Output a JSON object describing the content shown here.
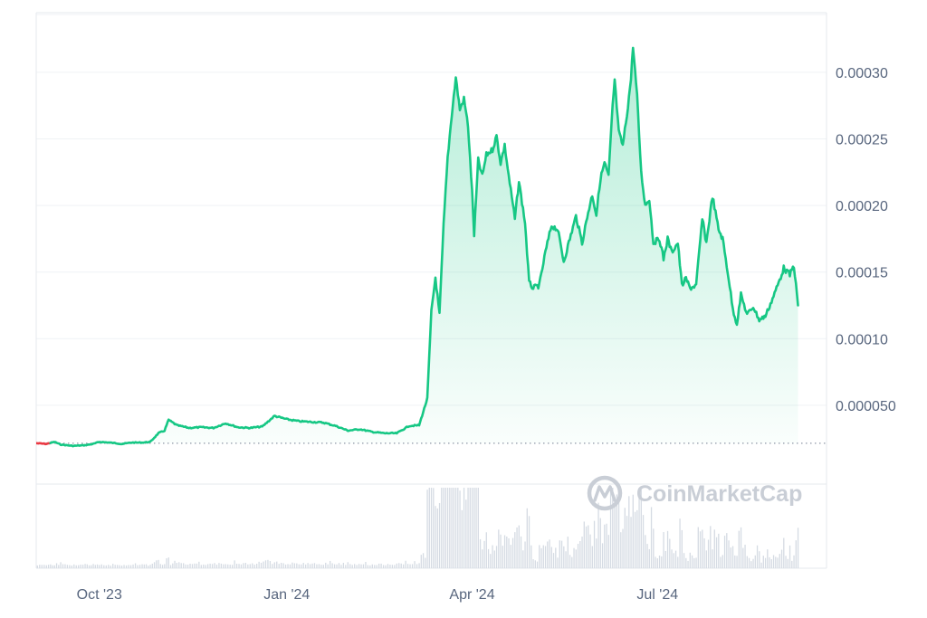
{
  "watermark": {
    "text": "CoinMarketCap",
    "icon": "coinmarketcap-logo-icon"
  },
  "colors": {
    "up_line": "#16c784",
    "down_line": "#ea3943",
    "fill_top": "#16c784",
    "gridline": "#eff2f5",
    "frame": "#e6e9ee",
    "baseline_dots": "#8d96a6",
    "volume": "#d5dbe3",
    "axis_text": "#58667e",
    "watermark": "#c9ced6"
  },
  "chart_data": {
    "type": "area",
    "title": "",
    "xlabel": "",
    "ylabel": "",
    "grid": true,
    "legend": "none",
    "x_ticks": [
      "Oct '23",
      "Jan '24",
      "Apr '24",
      "Jul '24"
    ],
    "y_ticks": [
      "0.000050",
      "0.00010",
      "0.00015",
      "0.00020",
      "0.00025",
      "0.00030"
    ],
    "y_tick_values": [
      5e-05,
      0.0001,
      0.00015,
      0.0002,
      0.00025,
      0.0003
    ],
    "xlim": [
      "2023-08-31",
      "2024-09-22"
    ],
    "ylim": [
      0,
      0.00035
    ],
    "baseline_value": 2.15e-05,
    "series": [
      {
        "values": [
          [
            "2023-08-31",
            2.15e-05
          ],
          [
            "2023-09-05",
            2.1e-05
          ],
          [
            "2023-09-09",
            2.25e-05
          ],
          [
            "2023-09-12",
            2.05e-05
          ],
          [
            "2023-09-18",
            1.95e-05
          ],
          [
            "2023-09-24",
            2e-05
          ],
          [
            "2023-09-28",
            2.1e-05
          ],
          [
            "2023-10-01",
            2.25e-05
          ],
          [
            "2023-10-06",
            2.2e-05
          ],
          [
            "2023-10-12",
            2.1e-05
          ],
          [
            "2023-10-17",
            2.2e-05
          ],
          [
            "2023-10-22",
            2.2e-05
          ],
          [
            "2023-10-26",
            2.25e-05
          ],
          [
            "2023-10-30",
            2.9e-05
          ],
          [
            "2023-11-02",
            3.1e-05
          ],
          [
            "2023-11-04",
            3.9e-05
          ],
          [
            "2023-11-08",
            3.5e-05
          ],
          [
            "2023-11-14",
            3.3e-05
          ],
          [
            "2023-11-20",
            3.35e-05
          ],
          [
            "2023-11-26",
            3.3e-05
          ],
          [
            "2023-12-02",
            3.65e-05
          ],
          [
            "2023-12-08",
            3.35e-05
          ],
          [
            "2023-12-14",
            3.3e-05
          ],
          [
            "2023-12-20",
            3.4e-05
          ],
          [
            "2023-12-26",
            4.2e-05
          ],
          [
            "2024-01-01",
            3.95e-05
          ],
          [
            "2024-01-07",
            3.8e-05
          ],
          [
            "2024-01-13",
            3.75e-05
          ],
          [
            "2024-01-19",
            3.7e-05
          ],
          [
            "2024-01-25",
            3.45e-05
          ],
          [
            "2024-01-31",
            3.1e-05
          ],
          [
            "2024-02-06",
            3.2e-05
          ],
          [
            "2024-02-12",
            3e-05
          ],
          [
            "2024-02-18",
            2.9e-05
          ],
          [
            "2024-02-24",
            2.9e-05
          ],
          [
            "2024-03-01",
            3.45e-05
          ],
          [
            "2024-03-06",
            3.5e-05
          ],
          [
            "2024-03-08",
            4.5e-05
          ],
          [
            "2024-03-10",
            5.5e-05
          ],
          [
            "2024-03-12",
            0.00012
          ],
          [
            "2024-03-14",
            0.000146
          ],
          [
            "2024-03-16",
            0.000118
          ],
          [
            "2024-03-18",
            0.000185
          ],
          [
            "2024-03-20",
            0.000236
          ],
          [
            "2024-03-22",
            0.000268
          ],
          [
            "2024-03-24",
            0.000296
          ],
          [
            "2024-03-26",
            0.000272
          ],
          [
            "2024-03-28",
            0.00028
          ],
          [
            "2024-03-30",
            0.00026
          ],
          [
            "2024-04-01",
            0.00021
          ],
          [
            "2024-04-02",
            0.000178
          ],
          [
            "2024-04-04",
            0.000234
          ],
          [
            "2024-04-06",
            0.000222
          ],
          [
            "2024-04-08",
            0.000238
          ],
          [
            "2024-04-11",
            0.000242
          ],
          [
            "2024-04-13",
            0.000252
          ],
          [
            "2024-04-15",
            0.000232
          ],
          [
            "2024-04-17",
            0.000245
          ],
          [
            "2024-04-19",
            0.000222
          ],
          [
            "2024-04-22",
            0.00019
          ],
          [
            "2024-04-24",
            0.000218
          ],
          [
            "2024-04-27",
            0.000187
          ],
          [
            "2024-04-29",
            0.000142
          ],
          [
            "2024-05-01",
            0.000138
          ],
          [
            "2024-05-04",
            0.00014
          ],
          [
            "2024-05-07",
            0.000165
          ],
          [
            "2024-05-10",
            0.000185
          ],
          [
            "2024-05-13",
            0.000182
          ],
          [
            "2024-05-16",
            0.000158
          ],
          [
            "2024-05-19",
            0.000175
          ],
          [
            "2024-05-22",
            0.000192
          ],
          [
            "2024-05-25",
            0.000172
          ],
          [
            "2024-05-28",
            0.000195
          ],
          [
            "2024-05-30",
            0.000208
          ],
          [
            "2024-06-01",
            0.000193
          ],
          [
            "2024-06-03",
            0.00022
          ],
          [
            "2024-06-05",
            0.000232
          ],
          [
            "2024-06-07",
            0.000222
          ],
          [
            "2024-06-09",
            0.000275
          ],
          [
            "2024-06-10",
            0.000294
          ],
          [
            "2024-06-12",
            0.000255
          ],
          [
            "2024-06-14",
            0.000245
          ],
          [
            "2024-06-16",
            0.000268
          ],
          [
            "2024-06-18",
            0.000295
          ],
          [
            "2024-06-19",
            0.00032
          ],
          [
            "2024-06-21",
            0.000282
          ],
          [
            "2024-06-23",
            0.000225
          ],
          [
            "2024-06-25",
            0.0002
          ],
          [
            "2024-06-27",
            0.000205
          ],
          [
            "2024-06-29",
            0.000172
          ],
          [
            "2024-07-02",
            0.000175
          ],
          [
            "2024-07-04",
            0.00016
          ],
          [
            "2024-07-06",
            0.000175
          ],
          [
            "2024-07-08",
            0.000165
          ],
          [
            "2024-07-11",
            0.000172
          ],
          [
            "2024-07-13",
            0.00014
          ],
          [
            "2024-07-15",
            0.000145
          ],
          [
            "2024-07-17",
            0.000138
          ],
          [
            "2024-07-20",
            0.00014
          ],
          [
            "2024-07-23",
            0.00019
          ],
          [
            "2024-07-25",
            0.000172
          ],
          [
            "2024-07-28",
            0.000207
          ],
          [
            "2024-07-31",
            0.000182
          ],
          [
            "2024-08-02",
            0.000175
          ],
          [
            "2024-08-05",
            0.000145
          ],
          [
            "2024-08-07",
            0.000122
          ],
          [
            "2024-08-09",
            0.000111
          ],
          [
            "2024-08-11",
            0.000133
          ],
          [
            "2024-08-14",
            0.000118
          ],
          [
            "2024-08-17",
            0.000124
          ],
          [
            "2024-08-20",
            0.000114
          ],
          [
            "2024-08-23",
            0.000117
          ],
          [
            "2024-08-26",
            0.000128
          ],
          [
            "2024-08-29",
            0.00014
          ],
          [
            "2024-09-01",
            0.000153
          ],
          [
            "2024-09-04",
            0.000148
          ],
          [
            "2024-09-06",
            0.000155
          ],
          [
            "2024-09-08",
            0.000125
          ]
        ]
      }
    ]
  }
}
